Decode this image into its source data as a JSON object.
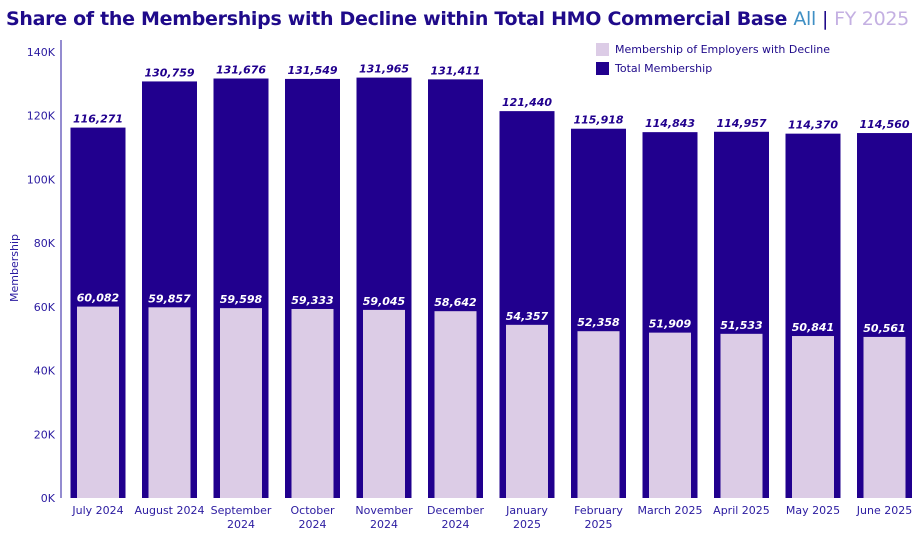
{
  "title": {
    "main": "Share of the Memberships  with Decline within Total HMO Commercial Base",
    "filter": "All",
    "separator": "|",
    "period": "FY 2025"
  },
  "chart_data": {
    "type": "bar",
    "title": "Share of the Memberships  with Decline within Total HMO Commercial Base",
    "ylabel": "Membership",
    "xlabel": "",
    "ylim": [
      0,
      140000
    ],
    "yticks": [
      "0K",
      "20K",
      "40K",
      "60K",
      "80K",
      "100K",
      "120K",
      "140K"
    ],
    "grid": false,
    "legend_position": "top-right",
    "categories": [
      "July 2024",
      "August 2024",
      "September 2024",
      "October 2024",
      "November 2024",
      "December 2024",
      "January 2025",
      "February 2025",
      "March 2025",
      "April 2025",
      "May 2025",
      "June 2025"
    ],
    "series": [
      {
        "name": "Total Membership",
        "color": "#21008e",
        "values": [
          116271,
          130759,
          131676,
          131549,
          131965,
          131411,
          121440,
          115918,
          114843,
          114957,
          114370,
          114560
        ],
        "labels": [
          "116,271",
          "130,759",
          "131,676",
          "131,549",
          "131,965",
          "131,411",
          "121,440",
          "115,918",
          "114,843",
          "114,957",
          "114,370",
          "114,560"
        ]
      },
      {
        "name": "Membership of Employers with Decline",
        "color": "#dccce6",
        "values": [
          60082,
          59857,
          59598,
          59333,
          59045,
          58642,
          54357,
          52358,
          51909,
          51533,
          50841,
          50561
        ],
        "labels": [
          "60,082",
          "59,857",
          "59,598",
          "59,333",
          "59,045",
          "58,642",
          "54,357",
          "52,358",
          "51,909",
          "51,533",
          "50,841",
          "50,561"
        ]
      }
    ]
  }
}
